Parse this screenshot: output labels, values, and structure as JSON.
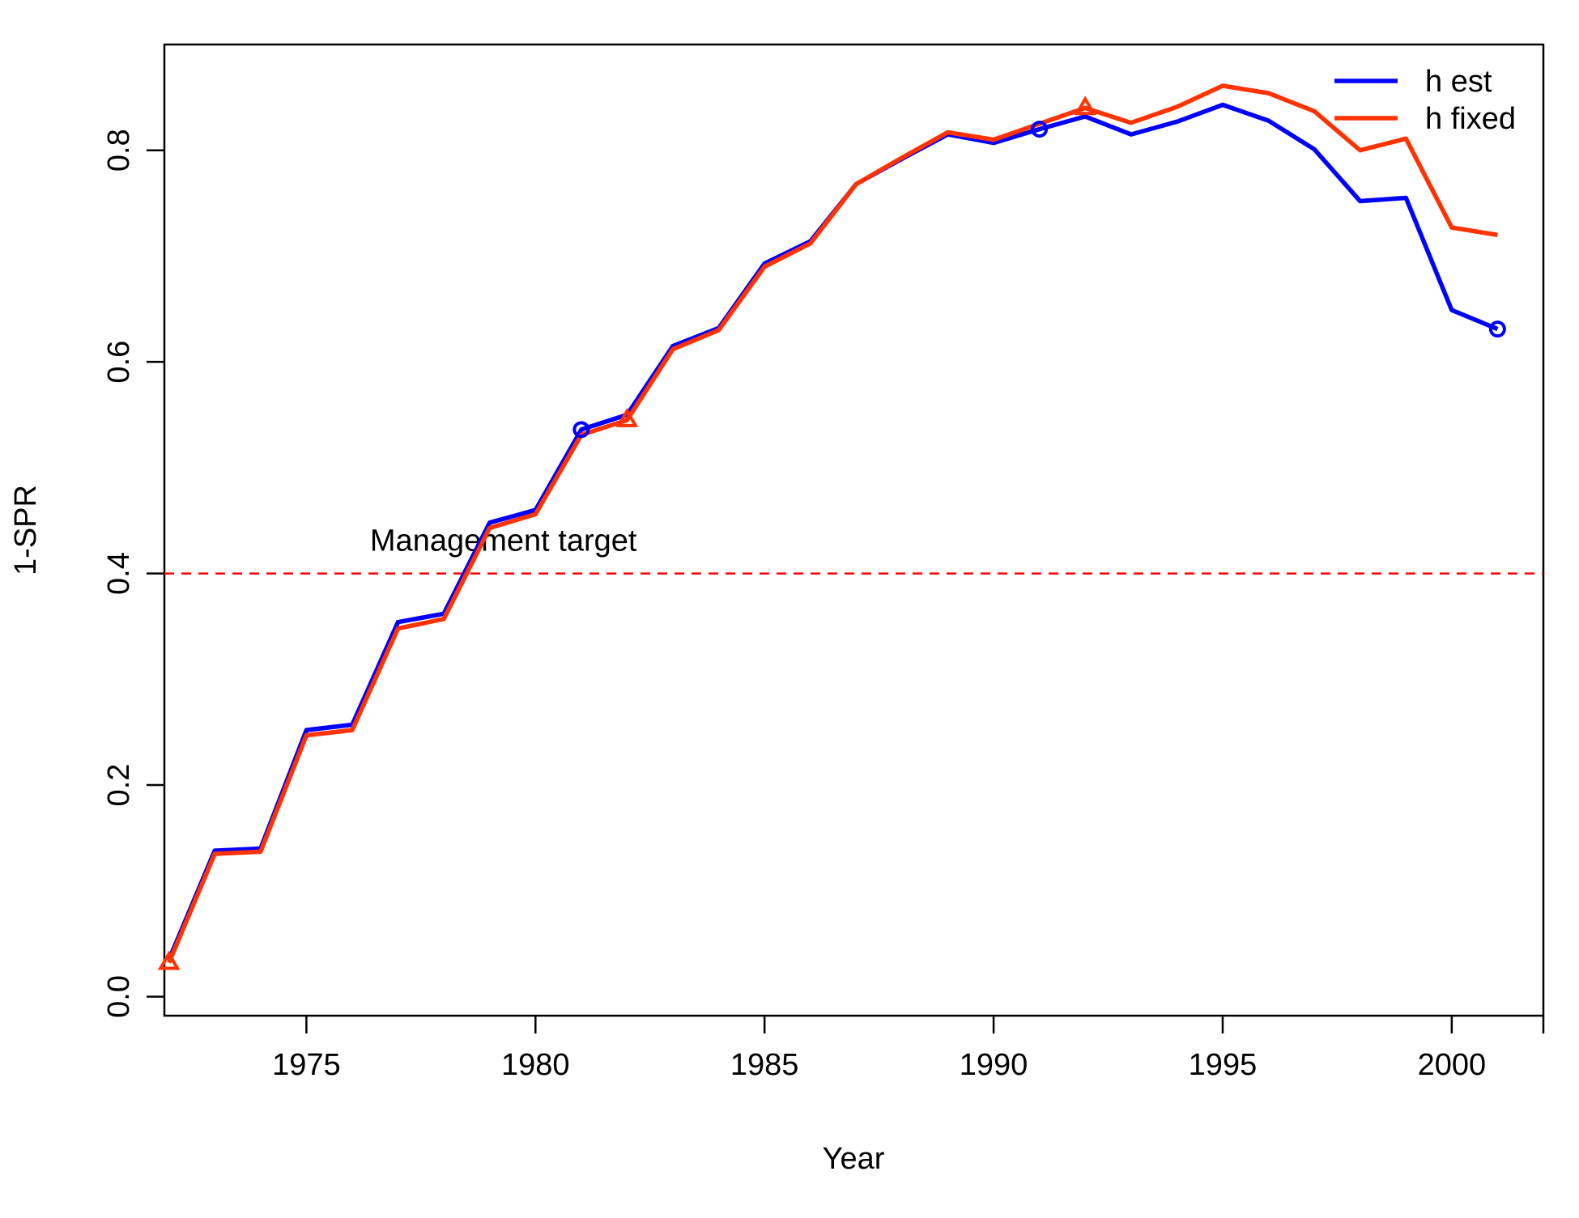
{
  "chart_data": {
    "type": "line",
    "xlabel": "Year",
    "ylabel": "1-SPR",
    "xlim": [
      1972,
      2002
    ],
    "ylim": [
      0,
      0.9
    ],
    "x_ticks": [
      1975,
      1980,
      1985,
      1990,
      1995,
      2000
    ],
    "x_tick_labels": [
      "1975",
      "1980",
      "1985",
      "1990",
      "1995",
      "2000"
    ],
    "y_ticks": [
      0.0,
      0.2,
      0.4,
      0.6,
      0.8
    ],
    "y_tick_labels": [
      "0.0",
      "0.2",
      "0.4",
      "0.6",
      "0.8"
    ],
    "grid": false,
    "legend_position": "top-right",
    "x": [
      1972,
      1973,
      1974,
      1975,
      1976,
      1977,
      1978,
      1979,
      1980,
      1981,
      1982,
      1983,
      1984,
      1985,
      1986,
      1987,
      1988,
      1989,
      1990,
      1991,
      1992,
      1993,
      1994,
      1995,
      1996,
      1997,
      1998,
      1999,
      2000,
      2001
    ],
    "series": [
      {
        "name": "h est",
        "color": "#0000ff",
        "marker": "circle",
        "marker_years": [
          1981,
          1991,
          2001
        ],
        "values": [
          0.035,
          0.138,
          0.14,
          0.252,
          0.257,
          0.354,
          0.362,
          0.448,
          0.46,
          0.536,
          0.55,
          0.615,
          0.632,
          0.693,
          0.714,
          0.768,
          0.792,
          0.815,
          0.807,
          0.82,
          0.832,
          0.815,
          0.827,
          0.843,
          0.828,
          0.801,
          0.752,
          0.755,
          0.649,
          0.631
        ]
      },
      {
        "name": "h fixed",
        "color": "#ff3300",
        "marker": "triangle",
        "marker_years": [
          1972,
          1982,
          1992
        ],
        "values": [
          0.032,
          0.135,
          0.137,
          0.247,
          0.252,
          0.348,
          0.357,
          0.443,
          0.456,
          0.531,
          0.545,
          0.612,
          0.63,
          0.69,
          0.712,
          0.768,
          0.793,
          0.817,
          0.81,
          0.825,
          0.84,
          0.826,
          0.841,
          0.861,
          0.854,
          0.837,
          0.8,
          0.811,
          0.727,
          0.72
        ]
      }
    ],
    "reference_line": {
      "y": 0.4,
      "color": "#ff0000",
      "style": "dashed",
      "label": "Management target",
      "label_x": 1979.3
    }
  }
}
